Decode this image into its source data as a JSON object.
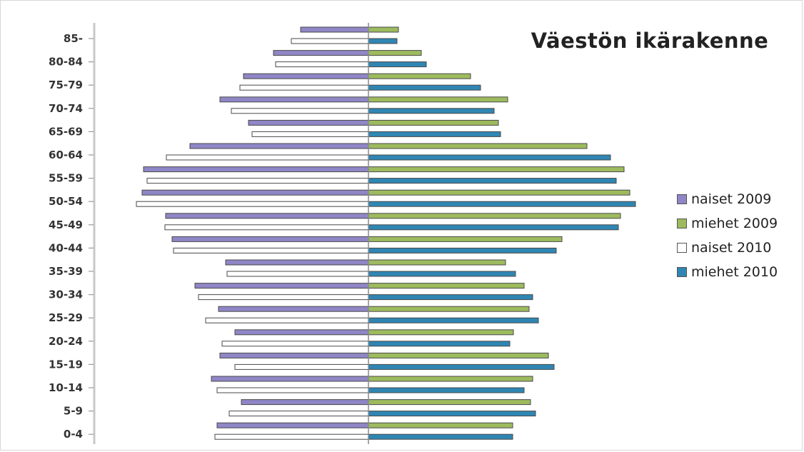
{
  "chart_data": {
    "type": "bar",
    "orientation": "horizontal-pyramid",
    "title": "Väestön ikärakenne",
    "categories": [
      "85-",
      "80-84",
      "75-79",
      "70-74",
      "65-69",
      "60-64",
      "55-59",
      "50-54",
      "45-49",
      "40-44",
      "35-39",
      "30-34",
      "25-29",
      "20-24",
      "15-19",
      "10-14",
      "5-9",
      "0-4"
    ],
    "series": [
      {
        "name": "naiset 2009",
        "side": "left",
        "color": "#8f86c6",
        "values": [
          95,
          133,
          175,
          208,
          168,
          250,
          315,
          317,
          284,
          275,
          200,
          243,
          210,
          187,
          208,
          220,
          178,
          212
        ]
      },
      {
        "name": "miehet 2009",
        "side": "right",
        "color": "#9dbb5e",
        "values": [
          42,
          74,
          143,
          195,
          182,
          306,
          358,
          366,
          353,
          271,
          192,
          218,
          225,
          203,
          252,
          230,
          227,
          202
        ]
      },
      {
        "name": "naiset 2010",
        "side": "left",
        "color": "#ffffff",
        "values": [
          108,
          130,
          180,
          192,
          163,
          283,
          310,
          325,
          285,
          273,
          198,
          238,
          228,
          205,
          187,
          212,
          195,
          215
        ]
      },
      {
        "name": "miehet 2010",
        "side": "right",
        "color": "#2f86b3",
        "values": [
          40,
          81,
          157,
          176,
          185,
          339,
          347,
          374,
          350,
          263,
          206,
          230,
          238,
          198,
          260,
          218,
          234,
          202
        ]
      }
    ],
    "legend_position": "right",
    "grid": false
  },
  "colors": {
    "axis": "#8a8a8a",
    "bar_outline": "#4a4a4a"
  }
}
